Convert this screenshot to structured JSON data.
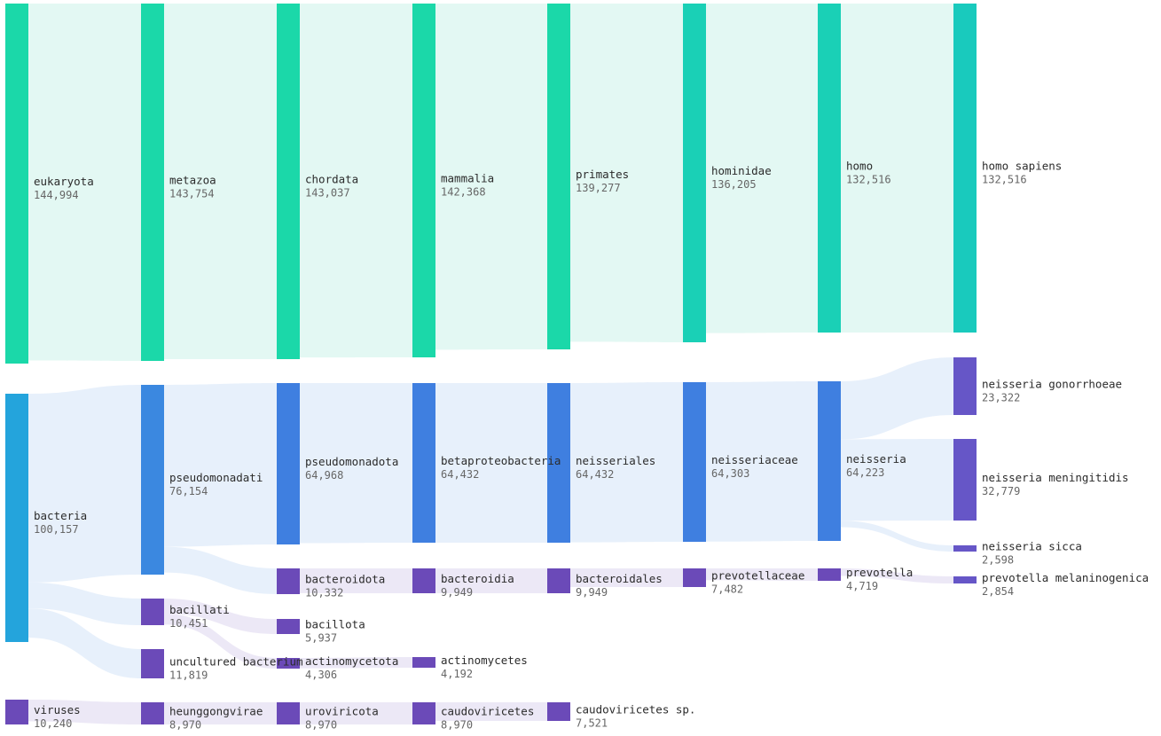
{
  "colors": {
    "teal_1": "#1bd8a9",
    "teal_2": "#1ad0b6",
    "teal_3": "#19cabd",
    "blue_1": "#24a4dc",
    "blue_2": "#3b88e0",
    "blue_3": "#3f7fe0",
    "purple_1": "#6b4ab8",
    "purple_2": "#6656c7",
    "link_teal": "#e3f8f3",
    "link_blue": "#e7f0fb",
    "link_purple": "#ece8f6"
  },
  "chart_data": {
    "type": "sankey",
    "nodes": [
      {
        "id": "eukaryota",
        "name": "eukaryota",
        "value": "144,994",
        "count": 144994,
        "color": "teal_1"
      },
      {
        "id": "bacteria",
        "name": "bacteria",
        "value": "100,157",
        "count": 100157,
        "color": "blue_1"
      },
      {
        "id": "viruses",
        "name": "viruses",
        "value": "10,240",
        "count": 10240,
        "color": "purple_1"
      },
      {
        "id": "metazoa",
        "name": "metazoa",
        "value": "143,754",
        "count": 143754,
        "color": "teal_1"
      },
      {
        "id": "pseudomonadati",
        "name": "pseudomonadati",
        "value": "76,154",
        "count": 76154,
        "color": "blue_2"
      },
      {
        "id": "bacillati",
        "name": "bacillati",
        "value": "10,451",
        "count": 10451,
        "color": "purple_1"
      },
      {
        "id": "uncultured_bacterium",
        "name": "uncultured bacterium",
        "value": "11,819",
        "count": 11819,
        "color": "purple_1"
      },
      {
        "id": "heunggongvirae",
        "name": "heunggongvirae",
        "value": "8,970",
        "count": 8970,
        "color": "purple_1"
      },
      {
        "id": "chordata",
        "name": "chordata",
        "value": "143,037",
        "count": 143037,
        "color": "teal_1"
      },
      {
        "id": "pseudomonadota",
        "name": "pseudomonadota",
        "value": "64,968",
        "count": 64968,
        "color": "blue_3"
      },
      {
        "id": "bacteroidota",
        "name": "bacteroidota",
        "value": "10,332",
        "count": 10332,
        "color": "purple_1"
      },
      {
        "id": "bacillota",
        "name": "bacillota",
        "value": "5,937",
        "count": 5937,
        "color": "purple_1"
      },
      {
        "id": "actinomycetota",
        "name": "actinomycetota",
        "value": "4,306",
        "count": 4306,
        "color": "purple_1"
      },
      {
        "id": "uroviricota",
        "name": "uroviricota",
        "value": "8,970",
        "count": 8970,
        "color": "purple_1"
      },
      {
        "id": "mammalia",
        "name": "mammalia",
        "value": "142,368",
        "count": 142368,
        "color": "teal_1"
      },
      {
        "id": "betaproteobacteria",
        "name": "betaproteobacteria",
        "value": "64,432",
        "count": 64432,
        "color": "blue_3"
      },
      {
        "id": "bacteroidia",
        "name": "bacteroidia",
        "value": "9,949",
        "count": 9949,
        "color": "purple_1"
      },
      {
        "id": "actinomycetes",
        "name": "actinomycetes",
        "value": "4,192",
        "count": 4192,
        "color": "purple_1"
      },
      {
        "id": "caudoviricetes",
        "name": "caudoviricetes",
        "value": "8,970",
        "count": 8970,
        "color": "purple_1"
      },
      {
        "id": "primates",
        "name": "primates",
        "value": "139,277",
        "count": 139277,
        "color": "teal_1"
      },
      {
        "id": "neisseriales",
        "name": "neisseriales",
        "value": "64,432",
        "count": 64432,
        "color": "blue_3"
      },
      {
        "id": "bacteroidales",
        "name": "bacteroidales",
        "value": "9,949",
        "count": 9949,
        "color": "purple_1"
      },
      {
        "id": "caudoviricetes_sp",
        "name": "caudoviricetes sp.",
        "value": "7,521",
        "count": 7521,
        "color": "purple_1"
      },
      {
        "id": "hominidae",
        "name": "hominidae",
        "value": "136,205",
        "count": 136205,
        "color": "teal_2"
      },
      {
        "id": "neisseriaceae",
        "name": "neisseriaceae",
        "value": "64,303",
        "count": 64303,
        "color": "blue_3"
      },
      {
        "id": "prevotellaceae",
        "name": "prevotellaceae",
        "value": "7,482",
        "count": 7482,
        "color": "purple_1"
      },
      {
        "id": "homo",
        "name": "homo",
        "value": "132,516",
        "count": 132516,
        "color": "teal_2"
      },
      {
        "id": "neisseria",
        "name": "neisseria",
        "value": "64,223",
        "count": 64223,
        "color": "blue_3"
      },
      {
        "id": "prevotella",
        "name": "prevotella",
        "value": "4,719",
        "count": 4719,
        "color": "purple_1"
      },
      {
        "id": "homo_sapiens",
        "name": "homo sapiens",
        "value": "132,516",
        "count": 132516,
        "color": "teal_3"
      },
      {
        "id": "neisseria_gonorrhoeae",
        "name": "neisseria gonorrhoeae",
        "value": "23,322",
        "count": 23322,
        "color": "purple_2"
      },
      {
        "id": "neisseria_meningitidis",
        "name": "neisseria meningitidis",
        "value": "32,779",
        "count": 32779,
        "color": "purple_2"
      },
      {
        "id": "neisseria_sicca",
        "name": "neisseria sicca",
        "value": "2,598",
        "count": 2598,
        "color": "purple_2"
      },
      {
        "id": "prevotella_melaninogenica",
        "name": "prevotella melaninogenica",
        "value": "2,854",
        "count": 2854,
        "color": "purple_2"
      }
    ],
    "links": [
      {
        "source": "eukaryota",
        "target": "metazoa",
        "value": 143754
      },
      {
        "source": "bacteria",
        "target": "pseudomonadati",
        "value": 76154
      },
      {
        "source": "bacteria",
        "target": "bacillati",
        "value": 10451
      },
      {
        "source": "bacteria",
        "target": "uncultured_bacterium",
        "value": 11819
      },
      {
        "source": "viruses",
        "target": "heunggongvirae",
        "value": 8970
      },
      {
        "source": "metazoa",
        "target": "chordata",
        "value": 143037
      },
      {
        "source": "pseudomonadati",
        "target": "pseudomonadota",
        "value": 64968
      },
      {
        "source": "pseudomonadati",
        "target": "bacteroidota",
        "value": 10332
      },
      {
        "source": "bacillati",
        "target": "bacillota",
        "value": 5937
      },
      {
        "source": "bacillati",
        "target": "actinomycetota",
        "value": 4306
      },
      {
        "source": "heunggongvirae",
        "target": "uroviricota",
        "value": 8970
      },
      {
        "source": "chordata",
        "target": "mammalia",
        "value": 142368
      },
      {
        "source": "pseudomonadota",
        "target": "betaproteobacteria",
        "value": 64432
      },
      {
        "source": "bacteroidota",
        "target": "bacteroidia",
        "value": 9949
      },
      {
        "source": "actinomycetota",
        "target": "actinomycetes",
        "value": 4192
      },
      {
        "source": "uroviricota",
        "target": "caudoviricetes",
        "value": 8970
      },
      {
        "source": "mammalia",
        "target": "primates",
        "value": 139277
      },
      {
        "source": "betaproteobacteria",
        "target": "neisseriales",
        "value": 64432
      },
      {
        "source": "bacteroidia",
        "target": "bacteroidales",
        "value": 9949
      },
      {
        "source": "caudoviricetes",
        "target": "caudoviricetes_sp",
        "value": 7521
      },
      {
        "source": "primates",
        "target": "hominidae",
        "value": 136205
      },
      {
        "source": "neisseriales",
        "target": "neisseriaceae",
        "value": 64303
      },
      {
        "source": "bacteroidales",
        "target": "prevotellaceae",
        "value": 7482
      },
      {
        "source": "hominidae",
        "target": "homo",
        "value": 132516
      },
      {
        "source": "neisseriaceae",
        "target": "neisseria",
        "value": 64223
      },
      {
        "source": "prevotellaceae",
        "target": "prevotella",
        "value": 4719
      },
      {
        "source": "homo",
        "target": "homo_sapiens",
        "value": 132516
      },
      {
        "source": "neisseria",
        "target": "neisseria_gonorrhoeae",
        "value": 23322
      },
      {
        "source": "neisseria",
        "target": "neisseria_meningitidis",
        "value": 32779
      },
      {
        "source": "neisseria",
        "target": "neisseria_sicca",
        "value": 2598
      },
      {
        "source": "prevotella",
        "target": "prevotella_melaninogenica",
        "value": 2854
      }
    ]
  }
}
